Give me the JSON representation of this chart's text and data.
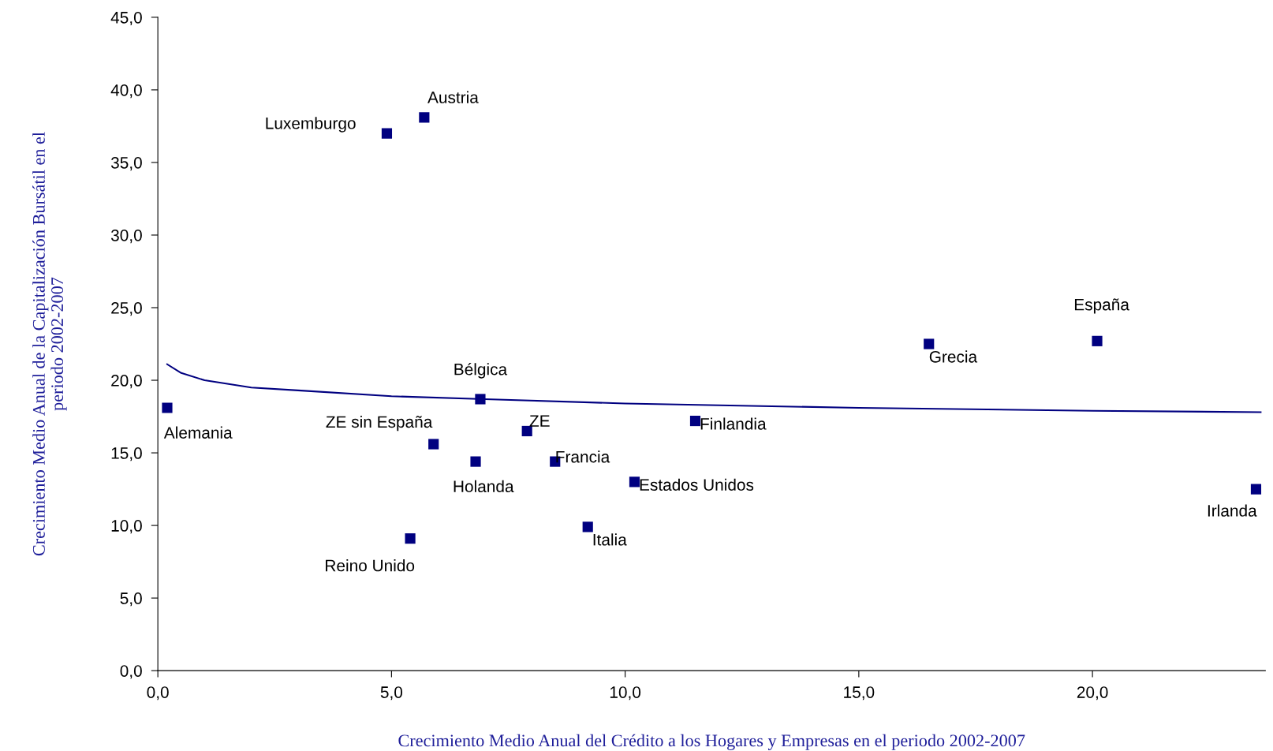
{
  "chart_data": {
    "type": "scatter",
    "xlabel": "Crecimiento Medio Anual del Crédito a los Hogares y Empresas en el periodo 2002-2007",
    "ylabel": "Crecimiento Medio Anual de la Capitalización Bursátil en el\nperiodo 2002-2007",
    "xlim": [
      0,
      23.7
    ],
    "ylim": [
      0,
      45
    ],
    "xticks": [
      {
        "value": 0,
        "label": "0,0"
      },
      {
        "value": 5,
        "label": "5,0"
      },
      {
        "value": 10,
        "label": "10,0"
      },
      {
        "value": 15,
        "label": "15,0"
      },
      {
        "value": 20,
        "label": "20,0"
      }
    ],
    "yticks": [
      {
        "value": 0,
        "label": "0,0"
      },
      {
        "value": 5,
        "label": "5,0"
      },
      {
        "value": 10,
        "label": "10,0"
      },
      {
        "value": 15,
        "label": "15,0"
      },
      {
        "value": 20,
        "label": "20,0"
      },
      {
        "value": 25,
        "label": "25,0"
      },
      {
        "value": 30,
        "label": "30,0"
      },
      {
        "value": 35,
        "label": "35,0"
      },
      {
        "value": 40,
        "label": "40,0"
      },
      {
        "value": 45,
        "label": "45,0"
      }
    ],
    "grid": false,
    "series": [
      {
        "marker": "square",
        "color": "#000080",
        "x": [
          0.2,
          4.9,
          5.7,
          6.9,
          5.9,
          6.8,
          5.4,
          7.9,
          8.5,
          9.2,
          10.2,
          11.5,
          16.5,
          20.1,
          23.5
        ],
        "values": [
          18.1,
          37.0,
          38.1,
          18.7,
          15.6,
          14.4,
          9.1,
          16.5,
          14.4,
          9.9,
          13.0,
          17.2,
          22.5,
          22.7,
          12.5
        ]
      },
      {
        "type": "line",
        "marker": "none",
        "color": "#000080",
        "x": [
          0.2,
          0.5,
          1,
          2,
          3,
          5,
          7,
          10,
          15,
          20,
          23.6
        ],
        "values": [
          21.1,
          20.5,
          20.0,
          19.5,
          19.3,
          18.9,
          18.7,
          18.4,
          18.1,
          17.9,
          17.8
        ]
      }
    ],
    "annotations": [
      {
        "text": "Alemania",
        "x": 0.2,
        "y": 18.1
      },
      {
        "text": "Luxemburgo",
        "x": 4.9,
        "y": 37.0
      },
      {
        "text": "Austria",
        "x": 5.7,
        "y": 38.1
      },
      {
        "text": "Bélgica",
        "x": 6.9,
        "y": 18.7
      },
      {
        "text": "ZE sin España",
        "x": 5.9,
        "y": 15.6
      },
      {
        "text": "Holanda",
        "x": 6.8,
        "y": 14.4
      },
      {
        "text": "Reino Unido",
        "x": 5.4,
        "y": 9.1
      },
      {
        "text": "ZE",
        "x": 7.9,
        "y": 16.5
      },
      {
        "text": "Francia",
        "x": 8.5,
        "y": 14.4
      },
      {
        "text": "Italia",
        "x": 9.2,
        "y": 9.9
      },
      {
        "text": "Estados Unidos",
        "x": 10.2,
        "y": 13.0
      },
      {
        "text": "Finlandia",
        "x": 11.5,
        "y": 17.2
      },
      {
        "text": "Grecia",
        "x": 16.5,
        "y": 22.5
      },
      {
        "text": "España",
        "x": 20.1,
        "y": 22.7
      },
      {
        "text": "Irlanda",
        "x": 23.5,
        "y": 12.5
      }
    ]
  }
}
